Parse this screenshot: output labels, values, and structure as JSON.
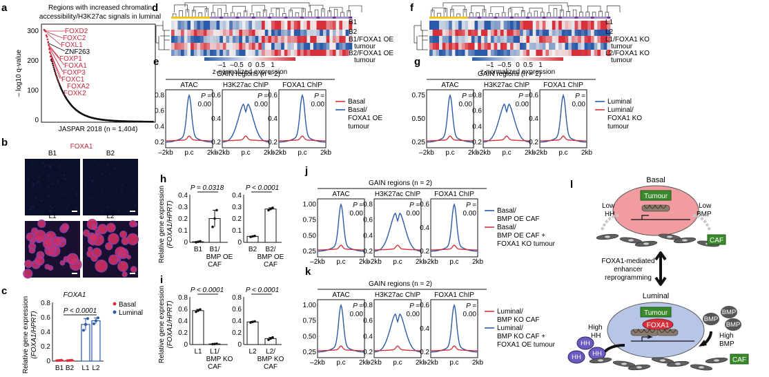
{
  "colors": {
    "red": "#d7303a",
    "blue": "#2a5aa8",
    "pink": "#f09ca0",
    "ovalBlue": "#b7c6e6",
    "green": "#3b8a2e",
    "bmp": "#555555",
    "hh": "#6a5bc2",
    "navy": "#283c8e"
  },
  "panel_a": {
    "label": "a",
    "title1": "Regions with increased chromatin",
    "title2": "accessibility/H3K27ac signals in luminal",
    "ylabel": "– log10 q-value",
    "xlabel": "JASPAR 2018 (n = 1,404)",
    "yticks": [
      "300",
      "200",
      "100",
      "0"
    ],
    "factors": [
      "FOXD2",
      "FOXC2",
      "FOXL1",
      "ZNF263",
      "FOXP1",
      "FOXA1",
      "FOXP3",
      "FOXC1",
      "FOXA2",
      "FOXK2"
    ]
  },
  "panel_b": {
    "label": "b",
    "title": "FOXA1",
    "images": [
      "B1",
      "B2",
      "L1",
      "L2"
    ]
  },
  "panel_c": {
    "label": "c",
    "title": "FOXA1",
    "ylabel1": "Relative gene expression",
    "ylabel2": "(FOXA1/HPRT)",
    "yticks": [
      "0.8",
      "0.6",
      "0.4",
      "0.2",
      "0"
    ],
    "pvalue": "P < 0.0001",
    "legend": [
      {
        "label": "Basal",
        "color": "#d7303a"
      },
      {
        "label": "Luminal",
        "color": "#2a5aa8"
      }
    ],
    "categories": [
      "B1",
      "B2",
      "L1",
      "L2"
    ]
  },
  "panel_d": {
    "label": "d",
    "rows": [
      "B1",
      "B2",
      "B1/FOXA1 OE",
      "tumour",
      "B2/FOXA1 OE",
      "tumour"
    ],
    "scale_ticks": [
      "–1",
      "–0.5",
      "0",
      "0.5",
      "1"
    ],
    "scale_label": "z-normalized expression"
  },
  "panel_f": {
    "label": "f",
    "rows": [
      "L1",
      "L2",
      "L1/FOXA1 KO",
      "tumour",
      "L2/FOXA1 KO",
      "tumour"
    ],
    "scale_ticks": [
      "–1",
      "–0.5",
      "0",
      "0.5",
      "1"
    ],
    "scale_label": "z-normalized expression"
  },
  "panel_e": {
    "label": "e",
    "title": "GAIN regions (n = 2)",
    "tracks": [
      "ATAC",
      "H3K27ac ChIP",
      "FOXA1 ChIP"
    ],
    "p1": "P =",
    "p2": "0.00",
    "xticks": [
      "–2kb",
      "p.c",
      "2kb"
    ],
    "yticks": [
      [
        "0.8",
        "0.6",
        "0.4",
        "0.2"
      ],
      [
        "0.6",
        "0.4",
        "0.2"
      ],
      [
        "0.6",
        "0.4",
        "0.2"
      ]
    ],
    "legend": [
      {
        "label": "Basal",
        "color": "#d7303a"
      },
      {
        "label": "Basal/",
        "color": "#2a5aa8"
      },
      {
        "label": "FOXA1 OE",
        "color": ""
      },
      {
        "label": "tumour",
        "color": ""
      }
    ]
  },
  "panel_g": {
    "label": "g",
    "title": "GAIN regions (n = 2)",
    "tracks": [
      "ATAC",
      "H3K27ac ChIP",
      "FOXA1 ChIP"
    ],
    "p1": "P =",
    "p2": "0.00",
    "xticks": [
      "–2kb",
      "p.c",
      "2kb"
    ],
    "yticks": [
      [
        "0.75",
        "0.50",
        "0.25"
      ],
      [
        "0.8",
        "0.6",
        "0.4",
        "0.2"
      ],
      [
        "0.6",
        "0.4",
        "0.2"
      ]
    ],
    "legend": [
      {
        "label": "Luminal",
        "color": "#2a5aa8"
      },
      {
        "label": "Luminal/",
        "color": "#d7303a"
      },
      {
        "label": "FOXA1 KO",
        "color": ""
      },
      {
        "label": "tumour",
        "color": ""
      }
    ]
  },
  "panel_h": {
    "label": "h",
    "ylabel1": "Relative gene expression",
    "ylabel2": "(FOXA1/HPRT)",
    "yticks": [
      "0.4",
      "0.3",
      "0.2",
      "0.1",
      "0"
    ],
    "pvalues": [
      "P = 0.0318",
      "P < 0.0001"
    ],
    "cat1": [
      "B1",
      "B1/",
      "BMP OE",
      "CAF"
    ],
    "cat2": [
      "B2",
      "B2/",
      "BMP OE",
      "CAF"
    ]
  },
  "panel_i": {
    "label": "i",
    "ylabel1": "Relative gene expression",
    "ylabel2": "(FOXA1/HPRT)",
    "yticks": [
      "0.8",
      "0.6",
      "0.4",
      "0.2",
      "0"
    ],
    "pvalues": [
      "P < 0.0001",
      "P < 0.0001"
    ],
    "cat1": [
      "L1",
      "L1/",
      "BMP KO",
      "CAF"
    ],
    "cat2": [
      "L2",
      "L2/",
      "BMP KO",
      "CAF"
    ]
  },
  "panel_j": {
    "label": "j",
    "title": "GAIN regions (n = 2)",
    "tracks": [
      "ATAC",
      "H3K27ac ChIP",
      "FOXA1 ChIP"
    ],
    "p1": "P =",
    "p2": "0.00",
    "xticks": [
      "–2kb",
      "p.c",
      "2kb"
    ],
    "yticks": [
      [
        "1.00",
        "0.75",
        "0.50",
        "0.25"
      ],
      [
        "0.8",
        "0.6",
        "0.4",
        "0.2"
      ],
      [
        "0.6",
        "0.4",
        "0.2"
      ]
    ],
    "legend": [
      {
        "label": "Basal/",
        "color": "#2a5aa8"
      },
      {
        "label": "BMP OE CAF",
        "color": ""
      },
      {
        "label": "Basal/",
        "color": "#d7303a"
      },
      {
        "label": "BMP OE CAF +",
        "color": ""
      },
      {
        "label": "FOXA1 KO tumour",
        "color": ""
      }
    ]
  },
  "panel_k": {
    "label": "k",
    "title": "GAIN regions (n = 2)",
    "tracks": [
      "ATAC",
      "H3K27ac ChIP",
      "FOXA1 ChIP"
    ],
    "p1": "P =",
    "p2": "0.00",
    "xticks": [
      "–2kb",
      "p.c",
      "2kb"
    ],
    "yticks": [
      [
        "1.00",
        "0.75",
        "0.50",
        "0.25"
      ],
      [
        "0.8",
        "0.6",
        "0.4",
        "0.2"
      ],
      [
        "0.6",
        "0.4",
        "0.2"
      ]
    ],
    "legend": [
      {
        "label": "Luminal/",
        "color": "#d7303a"
      },
      {
        "label": "BMP KO CAF",
        "color": ""
      },
      {
        "label": "Luminal/",
        "color": "#2a5aa8"
      },
      {
        "label": "BMP KO CAF +",
        "color": ""
      },
      {
        "label": "FOXA1 OE tumour",
        "color": ""
      }
    ]
  },
  "panel_l": {
    "label": "l",
    "basal": "Basal",
    "luminal": "Luminal",
    "tumour": "Tumour",
    "caf": "CAF",
    "foxa1": "FOXA1",
    "low_hh": [
      "Low",
      "HH"
    ],
    "low_bmp": [
      "Low",
      "BMP"
    ],
    "high_hh": [
      "High",
      "HH"
    ],
    "high_bmp": [
      "High",
      "BMP"
    ],
    "mid": [
      "FOXA1-mediated",
      "enhancer",
      "reprogramming"
    ],
    "bmp": "BMP",
    "hh": "HH"
  },
  "chart_data": [
    {
      "type": "scatter",
      "title": "Regions with increased chromatin accessibility/H3K27ac signals in luminal",
      "xlabel": "JASPAR 2018 (n = 1,404)",
      "ylabel": "-log10 q-value",
      "ylim": [
        0,
        310
      ],
      "n": 1404,
      "top_values": [
        292,
        290,
        287,
        275,
        270,
        262,
        254,
        244,
        232,
        220,
        208,
        196
      ]
    },
    {
      "type": "bar",
      "title": "FOXA1",
      "categories": [
        "B1",
        "B2",
        "L1",
        "L2"
      ],
      "values": [
        0.01,
        0.01,
        0.5,
        0.55
      ],
      "errors": [
        0,
        0,
        0.08,
        0.04
      ],
      "ylim": [
        0,
        0.8
      ],
      "ylabel": "Relative gene expression (FOXA1/HPRT)"
    },
    {
      "type": "bar",
      "title": "h-left",
      "categories": [
        "B1",
        "B1/BMP OE CAF"
      ],
      "values": [
        0.005,
        0.2
      ],
      "errors": [
        0,
        0.07
      ],
      "ylim": [
        0,
        0.4
      ]
    },
    {
      "type": "bar",
      "title": "h-right",
      "categories": [
        "B2",
        "B2/BMP OE CAF"
      ],
      "values": [
        0.05,
        0.28
      ],
      "errors": [
        0,
        0.01
      ],
      "ylim": [
        0,
        0.4
      ]
    },
    {
      "type": "bar",
      "title": "i-left",
      "categories": [
        "L1",
        "L1/BMP KO CAF"
      ],
      "values": [
        0.57,
        0.01
      ],
      "errors": [
        0.02,
        0
      ],
      "ylim": [
        0,
        0.8
      ]
    },
    {
      "type": "bar",
      "title": "i-right",
      "categories": [
        "L2",
        "L2/BMP KO CAF"
      ],
      "values": [
        0.38,
        0.1
      ],
      "errors": [
        0.01,
        0.02
      ],
      "ylim": [
        0,
        0.8
      ]
    }
  ]
}
